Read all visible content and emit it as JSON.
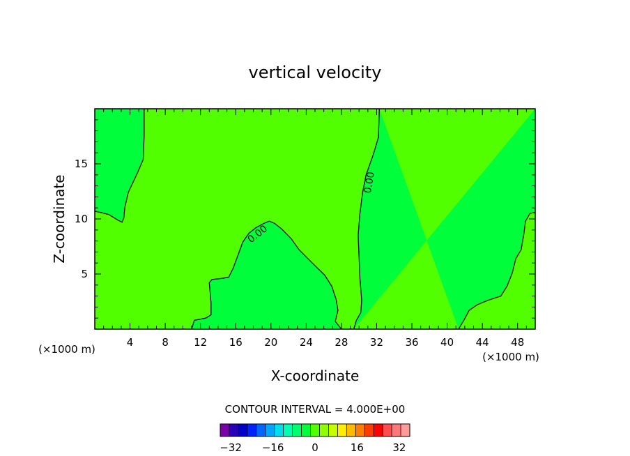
{
  "chart_data": {
    "type": "contour",
    "title": "vertical velocity",
    "xlabel": "X-coordinate",
    "ylabel": "Z-coordinate",
    "x_units": "(×1000 m)",
    "y_units": "(×1000 m)",
    "xlim": [
      0,
      50
    ],
    "ylim": [
      0,
      20
    ],
    "x_ticks": [
      4,
      8,
      12,
      16,
      20,
      24,
      28,
      32,
      36,
      40,
      44,
      48
    ],
    "y_ticks": [
      5,
      10,
      15
    ],
    "contour_interval_text": "CONTOUR INTERVAL = 4.000E+00",
    "contour_label": "0.00",
    "colors": {
      "positive_region": "#52ff00",
      "negative_region": "#00ff3a",
      "contour_line": "#000000"
    },
    "colorbar": {
      "tick_labels": [
        "-32",
        "-16",
        "0",
        "16",
        "32"
      ],
      "tick_values": [
        -32,
        -16,
        0,
        16,
        32
      ],
      "range": [
        -36,
        36
      ],
      "colors": [
        "#7a00aa",
        "#2a00bb",
        "#0000cc",
        "#0022ff",
        "#0066ff",
        "#00a6ff",
        "#00ddee",
        "#00ffb0",
        "#00ff70",
        "#00ff3a",
        "#52ff00",
        "#90ff00",
        "#c8ff00",
        "#ffee00",
        "#ffbb00",
        "#ff7d00",
        "#ff3c00",
        "#ff0000",
        "#ff4d4d",
        "#ff7777",
        "#ff9a9a"
      ]
    },
    "zero_contours": [
      [
        [
          5.6,
          20
        ],
        [
          5.6,
          17.5
        ],
        [
          5.5,
          15.4
        ],
        [
          4.8,
          14.1
        ],
        [
          3.8,
          12.4
        ],
        [
          3.4,
          11.0
        ],
        [
          3.3,
          10.1
        ],
        [
          3.1,
          9.7
        ],
        [
          2.6,
          9.9
        ],
        [
          1.6,
          10.4
        ],
        [
          0.6,
          10.6
        ],
        [
          0,
          10.7
        ]
      ],
      [
        [
          11,
          0
        ],
        [
          11.3,
          0.8
        ],
        [
          12.6,
          1.0
        ],
        [
          13.2,
          1.3
        ],
        [
          13.2,
          2.4
        ],
        [
          13.0,
          4.2
        ],
        [
          13.3,
          4.5
        ],
        [
          14.4,
          4.6
        ],
        [
          15.2,
          4.7
        ],
        [
          15.7,
          5.5
        ],
        [
          16.3,
          6.8
        ],
        [
          16.8,
          7.9
        ],
        [
          17.5,
          8.7
        ],
        [
          18.3,
          9.2
        ],
        [
          19.2,
          9.6
        ],
        [
          19.8,
          9.8
        ],
        [
          20.4,
          9.6
        ],
        [
          21.2,
          9.1
        ],
        [
          22.3,
          8.2
        ],
        [
          23.2,
          7.2
        ],
        [
          24.2,
          6.4
        ],
        [
          25.2,
          5.6
        ],
        [
          26.1,
          4.9
        ],
        [
          26.9,
          3.9
        ],
        [
          27.4,
          2.7
        ],
        [
          27.6,
          1.7
        ],
        [
          27.3,
          0.7
        ],
        [
          28.0,
          0
        ]
      ],
      [
        [
          32.3,
          20
        ],
        [
          32.2,
          17.4
        ],
        [
          31.6,
          15.8
        ],
        [
          30.8,
          14.0
        ],
        [
          30.4,
          12.4
        ],
        [
          30.1,
          10.5
        ],
        [
          29.9,
          8.5
        ],
        [
          30.0,
          6.6
        ],
        [
          30.1,
          4.6
        ],
        [
          30.3,
          2.6
        ],
        [
          30.2,
          1.5
        ],
        [
          29.7,
          0.8
        ],
        [
          29.4,
          0
        ]
      ],
      [
        [
          50,
          10.6
        ],
        [
          49.4,
          10.5
        ],
        [
          48.9,
          9.8
        ],
        [
          48.7,
          8.6
        ],
        [
          48.4,
          7.2
        ],
        [
          47.8,
          6.4
        ],
        [
          47.4,
          5.1
        ],
        [
          46.8,
          3.9
        ],
        [
          46.1,
          3.0
        ],
        [
          44.6,
          2.6
        ],
        [
          43.4,
          2.2
        ],
        [
          42.5,
          1.7
        ],
        [
          41.9,
          0.8
        ],
        [
          41.3,
          0
        ]
      ]
    ],
    "contour_label_positions": [
      [
        18.5,
        8.6,
        -38
      ],
      [
        31.2,
        13.3,
        -80
      ]
    ]
  }
}
